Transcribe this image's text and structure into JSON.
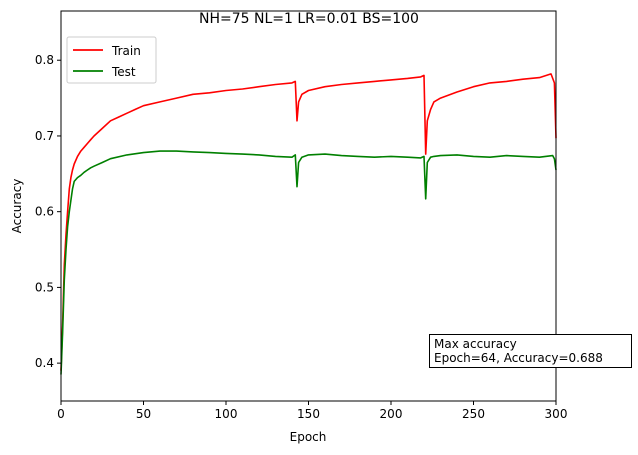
{
  "chart_data": {
    "type": "line",
    "title": "NH=75 NL=1 LR=0.01 BS=100",
    "xlabel": "Epoch",
    "ylabel": "Accuracy",
    "xlim": [
      0,
      300
    ],
    "ylim": [
      0.35,
      0.865
    ],
    "xticks": [
      0,
      50,
      100,
      150,
      200,
      250,
      300
    ],
    "yticks": [
      0.4,
      0.5,
      0.6,
      0.7,
      0.8
    ],
    "grid": false,
    "legend_position": "top-left",
    "series": [
      {
        "name": "Train",
        "color": "#ff0000",
        "x": [
          0,
          1,
          2,
          3,
          4,
          5,
          6,
          7,
          8,
          10,
          12,
          14,
          16,
          18,
          20,
          25,
          30,
          35,
          40,
          45,
          50,
          60,
          70,
          80,
          90,
          100,
          110,
          120,
          130,
          140,
          142,
          143,
          144,
          146,
          150,
          160,
          170,
          180,
          190,
          200,
          210,
          218,
          220,
          221,
          222,
          224,
          226,
          230,
          240,
          250,
          260,
          270,
          280,
          290,
          297,
          299,
          300
        ],
        "y": [
          0.39,
          0.45,
          0.53,
          0.57,
          0.6,
          0.63,
          0.645,
          0.655,
          0.663,
          0.673,
          0.68,
          0.685,
          0.69,
          0.695,
          0.7,
          0.71,
          0.72,
          0.725,
          0.73,
          0.735,
          0.74,
          0.745,
          0.75,
          0.755,
          0.757,
          0.76,
          0.762,
          0.765,
          0.768,
          0.77,
          0.772,
          0.72,
          0.745,
          0.755,
          0.76,
          0.765,
          0.768,
          0.77,
          0.772,
          0.774,
          0.776,
          0.778,
          0.78,
          0.676,
          0.72,
          0.735,
          0.745,
          0.75,
          0.758,
          0.765,
          0.77,
          0.772,
          0.775,
          0.777,
          0.782,
          0.77,
          0.697
        ]
      },
      {
        "name": "Test",
        "color": "#008000",
        "x": [
          0,
          1,
          2,
          3,
          4,
          5,
          6,
          7,
          8,
          10,
          12,
          14,
          16,
          18,
          20,
          25,
          30,
          40,
          50,
          60,
          70,
          80,
          90,
          100,
          110,
          120,
          130,
          140,
          142,
          143,
          144,
          146,
          150,
          160,
          170,
          180,
          190,
          200,
          210,
          218,
          220,
          221,
          222,
          224,
          226,
          230,
          240,
          250,
          260,
          270,
          280,
          290,
          298,
          299,
          300
        ],
        "y": [
          0.385,
          0.44,
          0.51,
          0.55,
          0.58,
          0.6,
          0.615,
          0.63,
          0.64,
          0.645,
          0.648,
          0.652,
          0.655,
          0.658,
          0.66,
          0.665,
          0.67,
          0.675,
          0.678,
          0.68,
          0.68,
          0.679,
          0.678,
          0.677,
          0.676,
          0.675,
          0.673,
          0.672,
          0.675,
          0.633,
          0.665,
          0.672,
          0.675,
          0.676,
          0.674,
          0.673,
          0.672,
          0.673,
          0.672,
          0.671,
          0.673,
          0.617,
          0.665,
          0.672,
          0.673,
          0.674,
          0.675,
          0.673,
          0.672,
          0.674,
          0.673,
          0.672,
          0.674,
          0.67,
          0.655
        ]
      }
    ],
    "annotation": {
      "line1": "Max accuracy",
      "line2": "Epoch=64, Accuracy=0.688"
    }
  }
}
